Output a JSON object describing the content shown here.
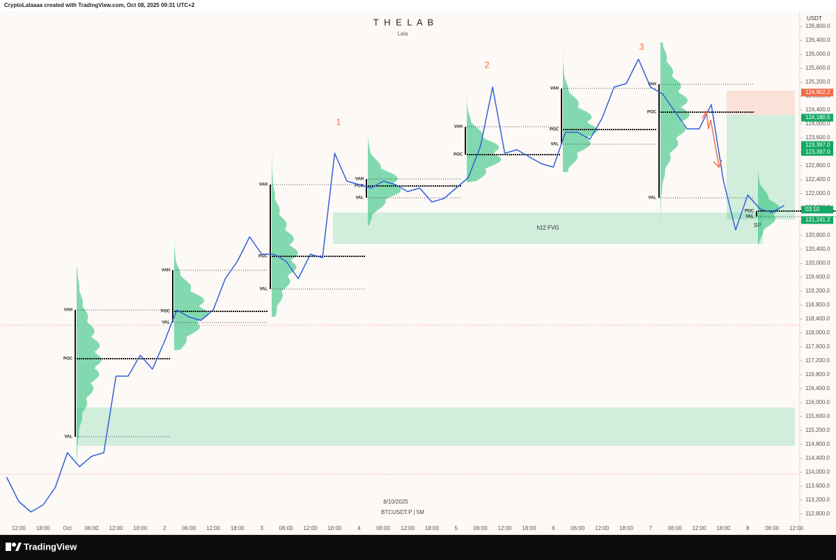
{
  "header": "CryptoLalaaaa created with TradingView.com, Oct 08, 2025 09:31 UTC+2",
  "footer": "TradingView",
  "chart_data": {
    "type": "line",
    "title": "T H E  L A B",
    "subtitle": "Lala",
    "date_note": "8/10/2025",
    "symbol": "BTCUSDT.P | 5M",
    "y_axis_label": "USDT",
    "color": "#2f5fd8",
    "categories": [
      null,
      "12:00",
      null,
      "18:00",
      null,
      "Oct",
      null,
      "06:00",
      null,
      "12:00",
      null,
      "18:00",
      null,
      "2",
      null,
      "06:00",
      null,
      "12:00",
      null,
      "18:00",
      null,
      "3",
      null,
      "06:00",
      null,
      "12:00",
      null,
      "18:00",
      null,
      "4",
      null,
      "06:00",
      null,
      "12:00",
      null,
      "18:00",
      null,
      "5",
      null,
      "06:00",
      null,
      "12:00",
      null,
      "18:00",
      null,
      "6",
      null,
      "06:00",
      null,
      "12:00",
      null,
      "18:00",
      null,
      "7",
      null,
      "06:00",
      null,
      "12:00",
      null,
      "18:00",
      null,
      "8",
      null,
      "06:00",
      null,
      "12:00"
    ],
    "values": [
      113860,
      113160,
      112860,
      113060,
      113560,
      114560,
      114160,
      114460,
      114560,
      116760,
      116760,
      117360,
      116960,
      117760,
      118660,
      118460,
      118360,
      118660,
      119560,
      120060,
      120760,
      120260,
      120260,
      120060,
      119560,
      120260,
      120160,
      123160,
      122360,
      122260,
      122160,
      122360,
      122260,
      122060,
      122160,
      121760,
      121860,
      122160,
      122460,
      123360,
      125060,
      123160,
      123260,
      123060,
      122860,
      122760,
      123760,
      123760,
      123560,
      124160,
      125060,
      125160,
      125860,
      125060,
      124860,
      124360,
      123860,
      123860,
      124560,
      122360,
      120960,
      121960,
      121560,
      121460,
      121660,
      null
    ],
    "ylim": [
      112600,
      127260
    ],
    "yticks": [
      {
        "value": 112800,
        "label": "112,800.0"
      },
      {
        "value": 113200,
        "label": "113,200.0"
      },
      {
        "value": 113600,
        "label": "113,600.0"
      },
      {
        "value": 114000,
        "label": "114,000.0"
      },
      {
        "value": 114400,
        "label": "114,400.0"
      },
      {
        "value": 114800,
        "label": "114,800.0"
      },
      {
        "value": 115200,
        "label": "115,200.0"
      },
      {
        "value": 115600,
        "label": "115,600.0"
      },
      {
        "value": 116000,
        "label": "116,000.0"
      },
      {
        "value": 116400,
        "label": "116,400.0"
      },
      {
        "value": 116800,
        "label": "116,800.0"
      },
      {
        "value": 117200,
        "label": "117,200.0"
      },
      {
        "value": 117600,
        "label": "117,600.0"
      },
      {
        "value": 118000,
        "label": "118,000.0"
      },
      {
        "value": 118400,
        "label": "118,400.0"
      },
      {
        "value": 118800,
        "label": "118,800.0"
      },
      {
        "value": 119200,
        "label": "119,200.0"
      },
      {
        "value": 119600,
        "label": "119,600.0"
      },
      {
        "value": 120000,
        "label": "120,000.0"
      },
      {
        "value": 120400,
        "label": "120,400.0"
      },
      {
        "value": 120800,
        "label": "120,800.0"
      },
      {
        "value": 121200,
        "label": "121,200.0"
      },
      {
        "value": 121600,
        "label": "121,600.0"
      },
      {
        "value": 122000,
        "label": "122,000.0"
      },
      {
        "value": 122400,
        "label": "122,400.0"
      },
      {
        "value": 122800,
        "label": "122,800.0"
      },
      {
        "value": 123200,
        "label": "123,200.0"
      },
      {
        "value": 123600,
        "label": "123,600.0"
      },
      {
        "value": 124000,
        "label": "124,000.0"
      },
      {
        "value": 124400,
        "label": "124,400.0"
      },
      {
        "value": 124800,
        "label": "124,800.0"
      },
      {
        "value": 125200,
        "label": "125,200.0"
      },
      {
        "value": 125600,
        "label": "125,600.0"
      },
      {
        "value": 126000,
        "label": "126,000.0"
      },
      {
        "value": 126400,
        "label": "126,400.0"
      },
      {
        "value": 126800,
        "label": "126,800.0"
      }
    ],
    "markers": [
      "1",
      "2",
      "3"
    ],
    "profile_labels": [
      "VAH",
      "POC",
      "VAL"
    ],
    "profiles": [
      {
        "vah": 118660,
        "poc": 117260,
        "val": 115020
      },
      {
        "vah": 119800,
        "poc": 118620,
        "val": 118300
      },
      {
        "vah": 122260,
        "poc": 120200,
        "val": 119260
      },
      {
        "vah": 122420,
        "poc": 122220,
        "val": 121880
      },
      {
        "vah": 123920,
        "poc": 123120,
        "val": null
      },
      {
        "vah": 125020,
        "poc": 123840,
        "val": 123420
      },
      {
        "vah": 125140,
        "poc": 124340,
        "val": 121880
      },
      {
        "vah": null,
        "poc": 121500,
        "val": 121340
      }
    ],
    "zones": [
      {
        "label": "h12 FVG",
        "top": 121460,
        "bottom": 120560,
        "color": "#22c07a"
      },
      {
        "top": 115860,
        "bottom": 114760,
        "color": "#22c07a"
      },
      {
        "top": 124960,
        "bottom": 124260,
        "color": "#f4876a"
      },
      {
        "top": 124260,
        "bottom": 121260,
        "color": "#22c07a"
      }
    ],
    "zone_note": "SP",
    "levels": [
      {
        "value": 118220,
        "color": "#e05a5a"
      },
      {
        "value": 113940,
        "color": "#e05a5a"
      }
    ],
    "price_labels": [
      {
        "value": 124902.2,
        "label": "124,902.2",
        "color": "#f06b4a"
      },
      {
        "value": 124180.5,
        "label": "124,180.5",
        "color": "#16a864"
      },
      {
        "value": 123397.0,
        "label": "123,397.0",
        "color": "#16a864"
      },
      {
        "value": 123397.0,
        "label": "123,397.0",
        "color": "#16a864"
      },
      {
        "value": 121241.2,
        "label": "121,241.2",
        "color": "#16a864"
      }
    ],
    "countdown": "03:10"
  }
}
